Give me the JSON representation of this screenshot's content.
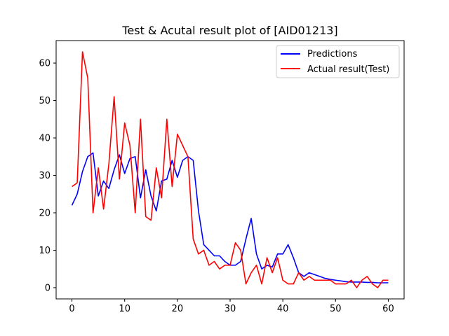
{
  "chart_data": {
    "type": "line",
    "title": "Test & Acutal result plot of [AID01213]",
    "xlabel": "",
    "ylabel": "",
    "xlim": [
      -3,
      63
    ],
    "ylim": [
      -3,
      66
    ],
    "xticks": [
      0,
      10,
      20,
      30,
      40,
      50,
      60
    ],
    "yticks": [
      0,
      10,
      20,
      30,
      40,
      50,
      60
    ],
    "grid": false,
    "legend_position": "top-right",
    "series": [
      {
        "name": "Predictions",
        "color": "#0000ff",
        "x": [
          0,
          1,
          2,
          3,
          4,
          5,
          6,
          7,
          8,
          9,
          10,
          11,
          12,
          13,
          14,
          15,
          16,
          17,
          18,
          19,
          20,
          21,
          22,
          23,
          24,
          25,
          26,
          27,
          28,
          29,
          30,
          31,
          32,
          33,
          34,
          35,
          36,
          37,
          38,
          39,
          40,
          41,
          42,
          43,
          44,
          45,
          46,
          47,
          48,
          49,
          50,
          51,
          52,
          53,
          54,
          55,
          56,
          57,
          58,
          59,
          60
        ],
        "values": [
          22,
          25,
          31,
          35,
          36,
          24.5,
          28.5,
          26.5,
          31.5,
          35.5,
          30.5,
          34.5,
          35,
          24,
          31.5,
          24.5,
          20.5,
          28.5,
          29,
          34,
          29.5,
          34,
          35,
          34,
          20.5,
          11.5,
          10,
          8.5,
          8.5,
          7,
          6,
          6,
          7,
          13,
          18.5,
          9,
          5,
          6,
          5.5,
          9,
          9,
          11.5,
          8,
          4,
          3,
          4,
          3.5,
          3,
          2.5,
          2.2,
          2,
          1.8,
          1.6,
          1.5,
          1.5,
          1.5,
          1.4,
          1.4,
          1.3,
          1.3,
          1.3
        ]
      },
      {
        "name": "Actual result(Test)",
        "color": "#ff0000",
        "x": [
          0,
          1,
          2,
          3,
          4,
          5,
          6,
          7,
          8,
          9,
          10,
          11,
          12,
          13,
          14,
          15,
          16,
          17,
          18,
          19,
          20,
          21,
          22,
          23,
          24,
          25,
          26,
          27,
          28,
          29,
          30,
          31,
          32,
          33,
          34,
          35,
          36,
          37,
          38,
          39,
          40,
          41,
          42,
          43,
          44,
          45,
          46,
          47,
          48,
          49,
          50,
          51,
          52,
          53,
          54,
          55,
          56,
          57,
          58,
          59,
          60
        ],
        "values": [
          27,
          28,
          63,
          56,
          20,
          32,
          21,
          33,
          51,
          29,
          44,
          38,
          20,
          45,
          19,
          18,
          32,
          24,
          45,
          27,
          41,
          38,
          35,
          13,
          9,
          10,
          6,
          7,
          5,
          6,
          6,
          12,
          10,
          1,
          4,
          6,
          1,
          8,
          4,
          8,
          2,
          1,
          1,
          4,
          2,
          3,
          2,
          2,
          2,
          2,
          1,
          1,
          1,
          2,
          0,
          2,
          3,
          1,
          0,
          2,
          2
        ]
      }
    ]
  }
}
